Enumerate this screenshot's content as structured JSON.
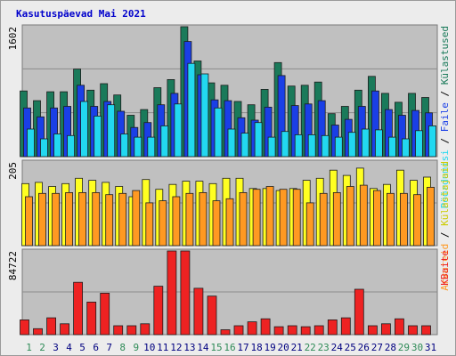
{
  "chart_data": {
    "type": "bar",
    "title": "Kasutuspäevad Mai 2021",
    "categories": [
      "1",
      "2",
      "3",
      "4",
      "5",
      "6",
      "7",
      "8",
      "9",
      "10",
      "11",
      "12",
      "13",
      "14",
      "15",
      "16",
      "17",
      "18",
      "19",
      "20",
      "21",
      "22",
      "23",
      "24",
      "25",
      "26",
      "27",
      "28",
      "29",
      "30",
      "31"
    ],
    "weekend_days": [
      "1",
      "2",
      "8",
      "9",
      "15",
      "16",
      "22",
      "23",
      "29",
      "30"
    ],
    "colors": {
      "background": "#c0c0c0",
      "frame": "#ececec",
      "weekday_label": "#000080",
      "weekend_label": "#2e8b57",
      "kulastused": "#1a7a5a",
      "failid": "#1a3fe6",
      "poordumisi": "#22d8f0",
      "kulastajad": "#ffff22",
      "arvutid": "#ff9922",
      "kbaite": "#ee2222"
    },
    "panels": [
      {
        "id": "top",
        "ymax_label": "1602",
        "ylim": [
          0,
          1602
        ],
        "series": [
          {
            "name": "Külastused",
            "color": "#1a7a5a",
            "values": [
              810,
              690,
              800,
              800,
              1080,
              820,
              900,
              760,
              510,
              580,
              850,
              950,
              1602,
              1180,
              910,
              880,
              680,
              640,
              830,
              1160,
              870,
              880,
              920,
              530,
              620,
              820,
              990,
              780,
              670,
              780,
              730
            ]
          },
          {
            "name": "Failid",
            "color": "#1a3fe6",
            "values": [
              600,
              490,
              600,
              620,
              880,
              620,
              680,
              560,
              360,
              420,
              640,
              780,
              1420,
              1010,
              700,
              690,
              480,
              450,
              610,
              1000,
              630,
              650,
              690,
              390,
              460,
              620,
              810,
              580,
              510,
              570,
              540
            ]
          },
          {
            "name": "Pöördumisi",
            "color": "#22d8f0",
            "values": [
              340,
              220,
              280,
              260,
              680,
              500,
              640,
              280,
              240,
              240,
              380,
              650,
              1150,
              1020,
              600,
              340,
              290,
              420,
              240,
              310,
              270,
              270,
              260,
              240,
              300,
              340,
              330,
              240,
              220,
              320,
              380
            ]
          }
        ]
      },
      {
        "id": "middle",
        "ymax_label": "205",
        "ylim": [
          0,
          205
        ],
        "series": [
          {
            "name": "Külastajad",
            "color": "#ffff22",
            "values": [
              152,
              155,
              145,
              152,
              165,
              160,
              155,
              145,
              120,
              162,
              138,
              150,
              158,
              158,
              152,
              165,
              165,
              140,
              140,
              135,
              140,
              160,
              165,
              185,
              172,
              190,
              140,
              150,
              185,
              160,
              168
            ]
          },
          {
            "name": "Arvutid",
            "color": "#ff9922",
            "values": [
              120,
              128,
              128,
              130,
              130,
              130,
              125,
              128,
              135,
              105,
              110,
              120,
              128,
              130,
              110,
              115,
              130,
              138,
              145,
              138,
              138,
              105,
              128,
              130,
              145,
              148,
              135,
              128,
              128,
              125,
              143
            ]
          }
        ]
      },
      {
        "id": "bottom",
        "ymax_label": "84722",
        "ylim": [
          0,
          84722
        ],
        "series": [
          {
            "name": "KBaite",
            "color": "#ee2222",
            "values": [
              15000,
              6000,
              17000,
              11000,
              53000,
              33000,
              42000,
              9000,
              9000,
              11000,
              49000,
              84722,
              84722,
              47000,
              39000,
              5000,
              9000,
              13000,
              16000,
              8000,
              9000,
              8000,
              9000,
              15000,
              17000,
              46000,
              9000,
              11000,
              16000,
              9000,
              9000
            ]
          }
        ]
      }
    ],
    "legend": {
      "top": [
        {
          "text": "Pöördumisi",
          "color": "#22d8f0"
        },
        {
          "text": " / ",
          "color": "#000000"
        },
        {
          "text": "Faile",
          "color": "#1a3fe6"
        },
        {
          "text": " / ",
          "color": "#000000"
        },
        {
          "text": "Külastused",
          "color": "#1a7a5a"
        }
      ],
      "middle": [
        {
          "text": "Arvuteid",
          "color": "#ff9922"
        },
        {
          "text": " / ",
          "color": "#000000"
        },
        {
          "text": "Külastajaid",
          "color": "#cccc00"
        }
      ],
      "bottom": [
        {
          "text": "KBaite",
          "color": "#ee2222"
        }
      ]
    }
  }
}
